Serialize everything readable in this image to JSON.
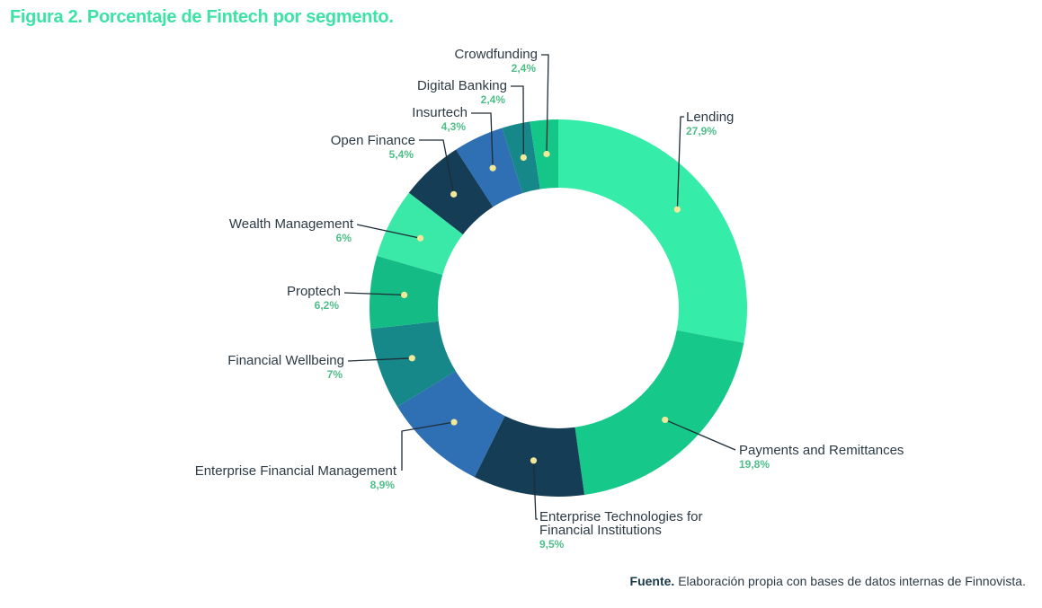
{
  "figure": {
    "title_prefix": "Figura 2.",
    "title_rest": "Porcentaje de Fintech por segmento.",
    "source_label": "Fuente.",
    "source_text": "Elaboración propia con bases de datos internas de Finnovista."
  },
  "colors": {
    "title": "#3de3a6",
    "label": "#2b3a45",
    "value": "#4fbf8a",
    "leader": "#1f2d36",
    "dot": "#f2e89a"
  },
  "chart_data": {
    "type": "pie",
    "variant": "donut",
    "start_angle_deg": 0,
    "direction": "clockwise",
    "slices": [
      {
        "name": "Lending",
        "value_label": "27,9%",
        "value": 27.9,
        "color": "#35eca9"
      },
      {
        "name": "Payments and Remittances",
        "value_label": "19,8%",
        "value": 19.8,
        "color": "#16c98a"
      },
      {
        "name": "Enterprise Technologies for Financial Institutions",
        "name_lines": [
          "Enterprise Technologies for",
          "Financial Institutions"
        ],
        "value_label": "9,5%",
        "value": 9.5,
        "color": "#153d55"
      },
      {
        "name": "Enterprise Financial Management",
        "value_label": "8,9%",
        "value": 8.9,
        "color": "#2f6fb3"
      },
      {
        "name": "Financial Wellbeing",
        "value_label": "7%",
        "value": 7.0,
        "color": "#16888a"
      },
      {
        "name": "Proptech",
        "value_label": "6,2%",
        "value": 6.2,
        "color": "#14bb84"
      },
      {
        "name": "Wealth Management",
        "value_label": "6%",
        "value": 6.0,
        "color": "#3ae8a8"
      },
      {
        "name": "Open Finance",
        "value_label": "5,4%",
        "value": 5.4,
        "color": "#153d55"
      },
      {
        "name": "Insurtech",
        "value_label": "4,3%",
        "value": 4.3,
        "color": "#2f6fb3"
      },
      {
        "name": "Digital Banking",
        "value_label": "2,4%",
        "value": 2.4,
        "color": "#16888a"
      },
      {
        "name": "Crowdfunding",
        "value_label": "2,4%",
        "value": 2.4,
        "color": "#14c688"
      }
    ]
  }
}
